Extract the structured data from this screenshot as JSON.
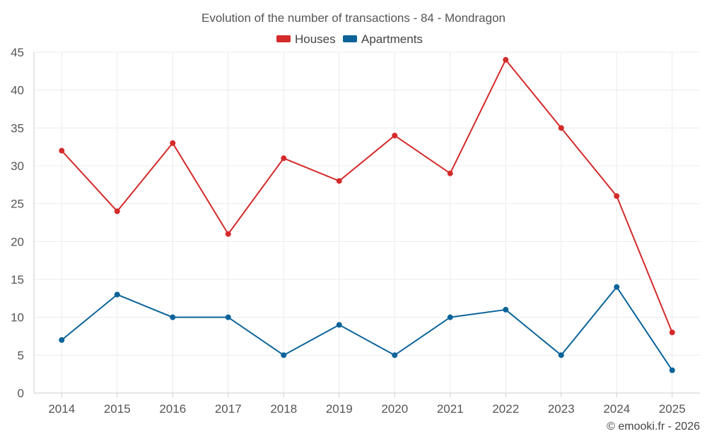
{
  "chart_data": {
    "type": "line",
    "title": "Evolution of the number of transactions - 84 - Mondragon",
    "categories": [
      "2014",
      "2015",
      "2016",
      "2017",
      "2018",
      "2019",
      "2020",
      "2021",
      "2022",
      "2023",
      "2024",
      "2025"
    ],
    "series": [
      {
        "name": "Houses",
        "color": "#d42a2a",
        "values": [
          32,
          24,
          33,
          21,
          31,
          28,
          34,
          29,
          44,
          35,
          26,
          8
        ]
      },
      {
        "name": "Apartments",
        "color": "#0b6399",
        "values": [
          7,
          13,
          10,
          10,
          5,
          9,
          5,
          10,
          11,
          5,
          14,
          3
        ]
      }
    ],
    "yticks": [
      0,
      5,
      10,
      15,
      20,
      25,
      30,
      35,
      40,
      45
    ],
    "ylim": [
      0,
      45
    ],
    "xlabel": "",
    "ylabel": "",
    "grid": true,
    "legend": "top-center"
  },
  "credit": "© emooki.fr - 2026"
}
